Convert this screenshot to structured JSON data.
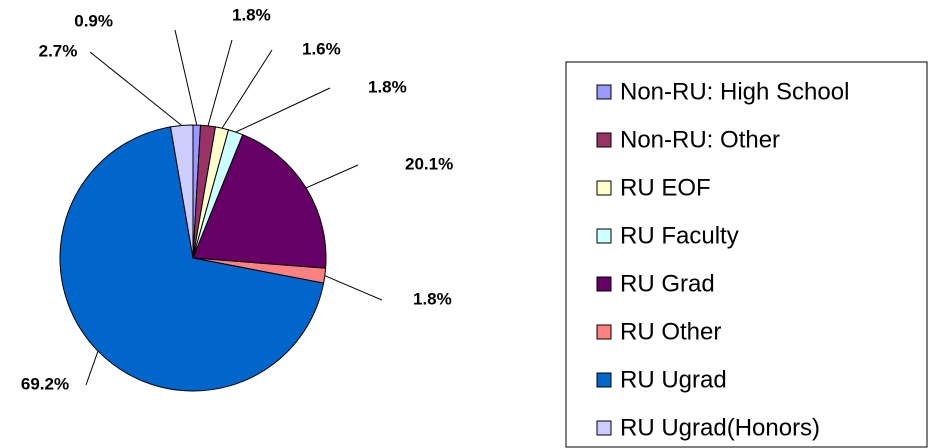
{
  "chart_data": {
    "type": "pie",
    "categories": [
      "Non-RU: High School",
      "Non-RU: Other",
      "RU EOF",
      "RU Faculty",
      "RU Grad",
      "RU Other",
      "RU Ugrad",
      "RU Ugrad(Honors)"
    ],
    "values": [
      0.9,
      1.8,
      1.6,
      1.8,
      20.1,
      1.8,
      69.2,
      2.7
    ],
    "value_labels": [
      "0.9%",
      "1.8%",
      "1.6%",
      "1.8%",
      "20.1%",
      "1.8%",
      "69.2%",
      "2.7%"
    ],
    "colors": [
      "#9999ff",
      "#993366",
      "#ffffcc",
      "#ccffff",
      "#660066",
      "#ff8080",
      "#0066cc",
      "#ccccff"
    ],
    "legend": "right"
  }
}
